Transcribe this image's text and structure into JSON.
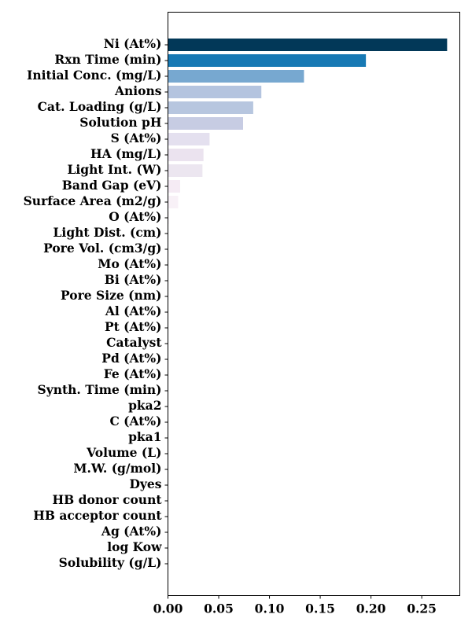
{
  "chart_data": {
    "type": "bar",
    "orientation": "horizontal",
    "title": "",
    "xlabel": "",
    "ylabel": "",
    "xlim": [
      0,
      0.2875
    ],
    "xticks": [
      0.0,
      0.05,
      0.1,
      0.15,
      0.2,
      0.25
    ],
    "xtick_labels": [
      "0.00",
      "0.05",
      "0.10",
      "0.15",
      "0.20",
      "0.25"
    ],
    "grid": false,
    "legend": "none",
    "categories": [
      "Ni (At%)",
      "Rxn Time (min)",
      "Initial Conc. (mg/L)",
      "Anions",
      "Cat. Loading (g/L)",
      "Solution pH",
      "S (At%)",
      "HA (mg/L)",
      "Light Int. (W)",
      "Band Gap (eV)",
      "Surface Area (m2/g)",
      "O (At%)",
      "Light Dist. (cm)",
      "Pore Vol. (cm3/g)",
      "Mo (At%)",
      "Bi (At%)",
      "Pore Size (nm)",
      "Al (At%)",
      "Pt (At%)",
      "Catalyst",
      "Pd (At%)",
      "Fe (At%)",
      "Synth. Time (min)",
      "pka2",
      "C (At%)",
      "pka1",
      "Volume (L)",
      "M.W. (g/mol)",
      "Dyes",
      "HB donor count",
      "HB acceptor count",
      "Ag (At%)",
      "log Kow",
      "Solubility (g/L)"
    ],
    "values": [
      0.275,
      0.195,
      0.134,
      0.092,
      0.084,
      0.074,
      0.041,
      0.035,
      0.034,
      0.012,
      0.01,
      0.001,
      0.0005,
      0.0004,
      0.0003,
      0.0003,
      0.0002,
      0.0002,
      0.0002,
      0.0002,
      0.0001,
      0.0001,
      0.0001,
      0.0001,
      0.0001,
      0.0001,
      0.0001,
      0.0001,
      0.0,
      0.0,
      0.0,
      0.0,
      0.0,
      0.0
    ],
    "colors": [
      "#023858",
      "#1779b4",
      "#77a8d0",
      "#b4c4df",
      "#b7c6df",
      "#c7cce3",
      "#e4e0ef",
      "#ebe3ef",
      "#ece6f0",
      "#f5ebf4",
      "#f8f1f7",
      "#fbf5fa",
      "#fdf9fc",
      "#fdf9fc",
      "#fdf9fc",
      "#fdf9fc",
      "#fefbfd",
      "#fefbfd",
      "#fefbfd",
      "#fefbfd",
      "#fffbfe",
      "#fffbfe",
      "#fffbfe",
      "#fffbfe",
      "#fffbfe",
      "#fffbfe",
      "#fffbfe",
      "#fffbfe",
      "#fffbfe",
      "#fffbfe",
      "#fffbfe",
      "#fffbfe",
      "#fffbfe",
      "#fffbfe"
    ]
  }
}
